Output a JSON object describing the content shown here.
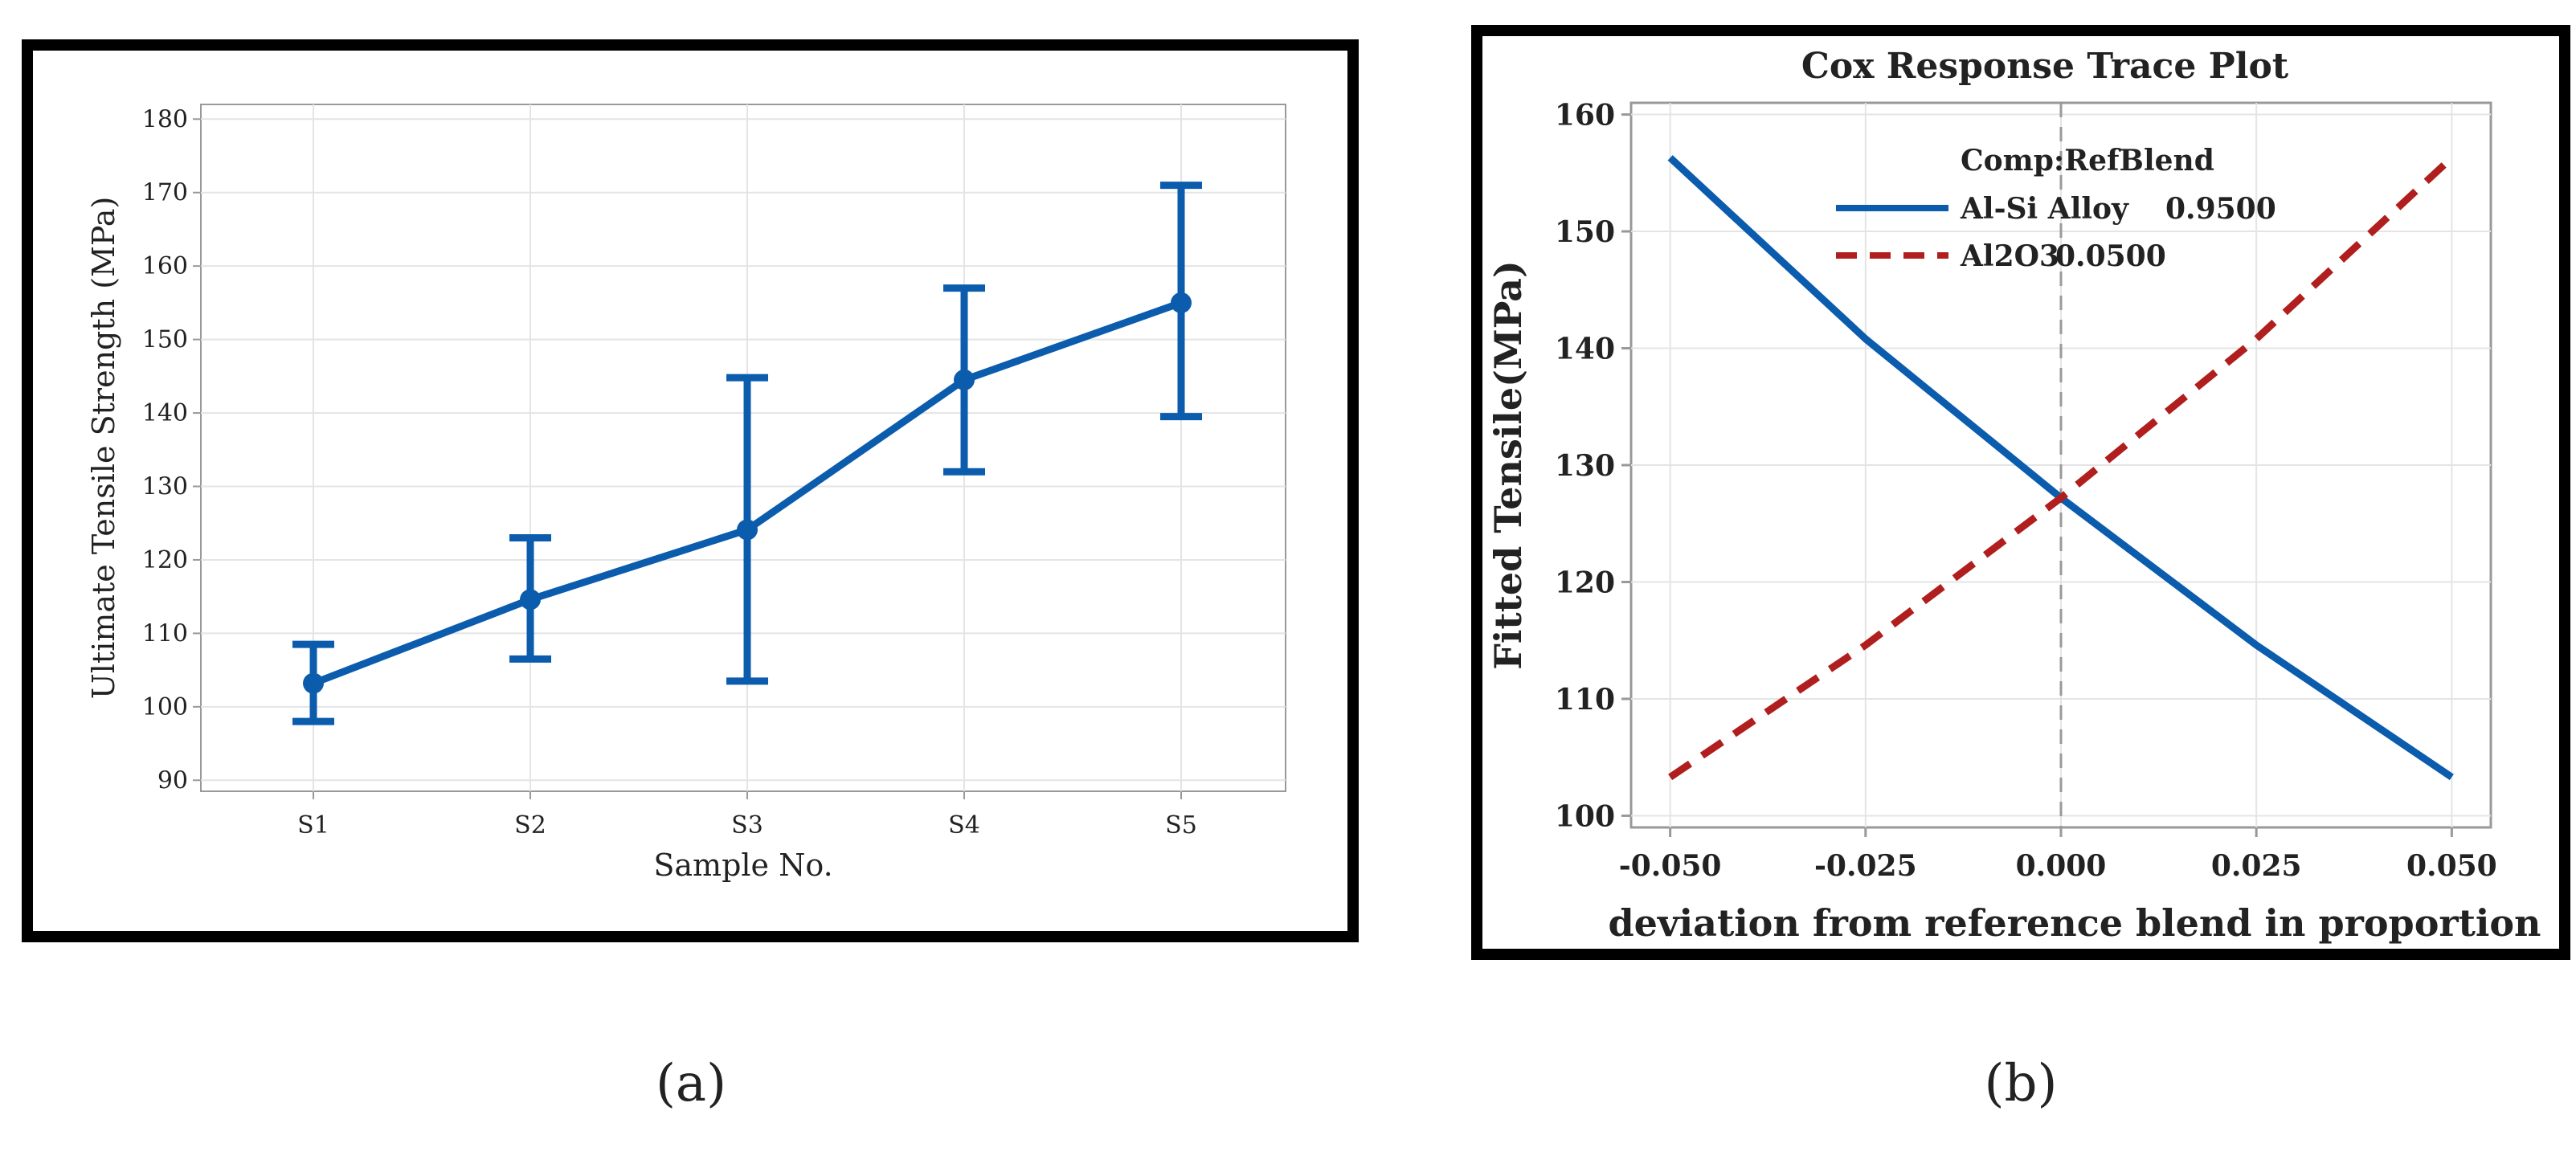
{
  "figure_labels": {
    "a": "(a)",
    "b": "(b)"
  },
  "chart_data": [
    {
      "type": "line",
      "title": "",
      "xlabel": "Sample No.",
      "ylabel": "Ultimate Tensile Strength (MPa)",
      "categories": [
        "S1",
        "S2",
        "S3",
        "S4",
        "S5"
      ],
      "values": [
        103.2,
        114.6,
        124.1,
        144.5,
        155
      ],
      "error_low": [
        98,
        106.5,
        103.5,
        132,
        139.5
      ],
      "error_high": [
        108.5,
        123,
        144.8,
        157,
        171
      ],
      "ylim": [
        88.5,
        182
      ],
      "yticks": [
        90,
        100,
        110,
        120,
        130,
        140,
        150,
        160,
        170,
        180
      ],
      "grid": true,
      "colors": {
        "series": "#0b5cad",
        "frame": "#000000",
        "grid": "#e4e4e4",
        "axis": "#999999"
      }
    },
    {
      "type": "line",
      "title": "Cox Response Trace Plot",
      "xlabel": "deviation from reference blend in proportion",
      "ylabel": "Fitted Tensile(MPa)",
      "xlim": [
        -0.055,
        0.055
      ],
      "ylim": [
        99,
        161
      ],
      "xticks": [
        "-0.050",
        "-0.025",
        "0.000",
        "0.025",
        "0.050"
      ],
      "xtick_values": [
        -0.05,
        -0.025,
        0,
        0.025,
        0.05
      ],
      "yticks": [
        100,
        110,
        120,
        130,
        140,
        150,
        160
      ],
      "reference_line_x": 0,
      "grid": true,
      "legend": {
        "title": "Comp:RefBlend",
        "position": "top-right",
        "entries": [
          {
            "name": "Al-Si Alloy",
            "value": "0.9500"
          },
          {
            "name": "Al2O3",
            "value": "0.0500"
          }
        ]
      },
      "series": [
        {
          "name": "Al-Si Alloy",
          "style": "solid",
          "color": "#0b5cad",
          "x": [
            -0.05,
            -0.025,
            0,
            0.025,
            0.05
          ],
          "y": [
            156.3,
            140.8,
            127.2,
            114.6,
            103.3
          ]
        },
        {
          "name": "Al2O3",
          "style": "dashed",
          "color": "#b01e1e",
          "x": [
            -0.05,
            -0.025,
            0,
            0.025,
            0.05
          ],
          "y": [
            103.3,
            114.6,
            127.2,
            140.8,
            156.3
          ]
        }
      ],
      "colors": {
        "frame": "#000000",
        "grid": "#e4e4e4",
        "axis": "#999999",
        "refline": "#9a9a9a"
      }
    }
  ]
}
